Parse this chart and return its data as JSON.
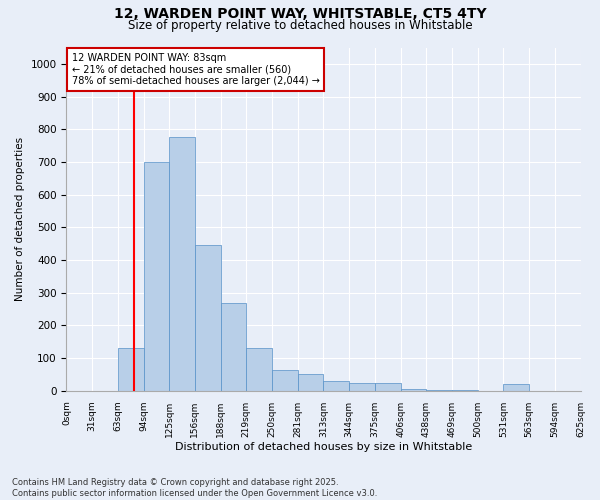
{
  "title1": "12, WARDEN POINT WAY, WHITSTABLE, CT5 4TY",
  "title2": "Size of property relative to detached houses in Whitstable",
  "xlabel": "Distribution of detached houses by size in Whitstable",
  "ylabel": "Number of detached properties",
  "bin_labels": [
    "0sqm",
    "31sqm",
    "63sqm",
    "94sqm",
    "125sqm",
    "156sqm",
    "188sqm",
    "219sqm",
    "250sqm",
    "281sqm",
    "313sqm",
    "344sqm",
    "375sqm",
    "406sqm",
    "438sqm",
    "469sqm",
    "500sqm",
    "531sqm",
    "563sqm",
    "594sqm",
    "625sqm"
  ],
  "bar_values": [
    0,
    0,
    130,
    700,
    775,
    445,
    270,
    130,
    65,
    50,
    30,
    25,
    25,
    5,
    3,
    2,
    1,
    20,
    1,
    1,
    0
  ],
  "bar_color": "#b8cfe8",
  "bar_edge_color": "#5590c8",
  "bg_color": "#e8eef8",
  "grid_color": "#ffffff",
  "red_line_label": "12 WARDEN POINT WAY: 83sqm",
  "annotation_line2": "← 21% of detached houses are smaller (560)",
  "annotation_line3": "78% of semi-detached houses are larger (2,044) →",
  "annotation_box_color": "#ffffff",
  "annotation_border_color": "#cc0000",
  "ylim": [
    0,
    1050
  ],
  "yticks": [
    0,
    100,
    200,
    300,
    400,
    500,
    600,
    700,
    800,
    900,
    1000
  ],
  "footer1": "Contains HM Land Registry data © Crown copyright and database right 2025.",
  "footer2": "Contains public sector information licensed under the Open Government Licence v3.0."
}
